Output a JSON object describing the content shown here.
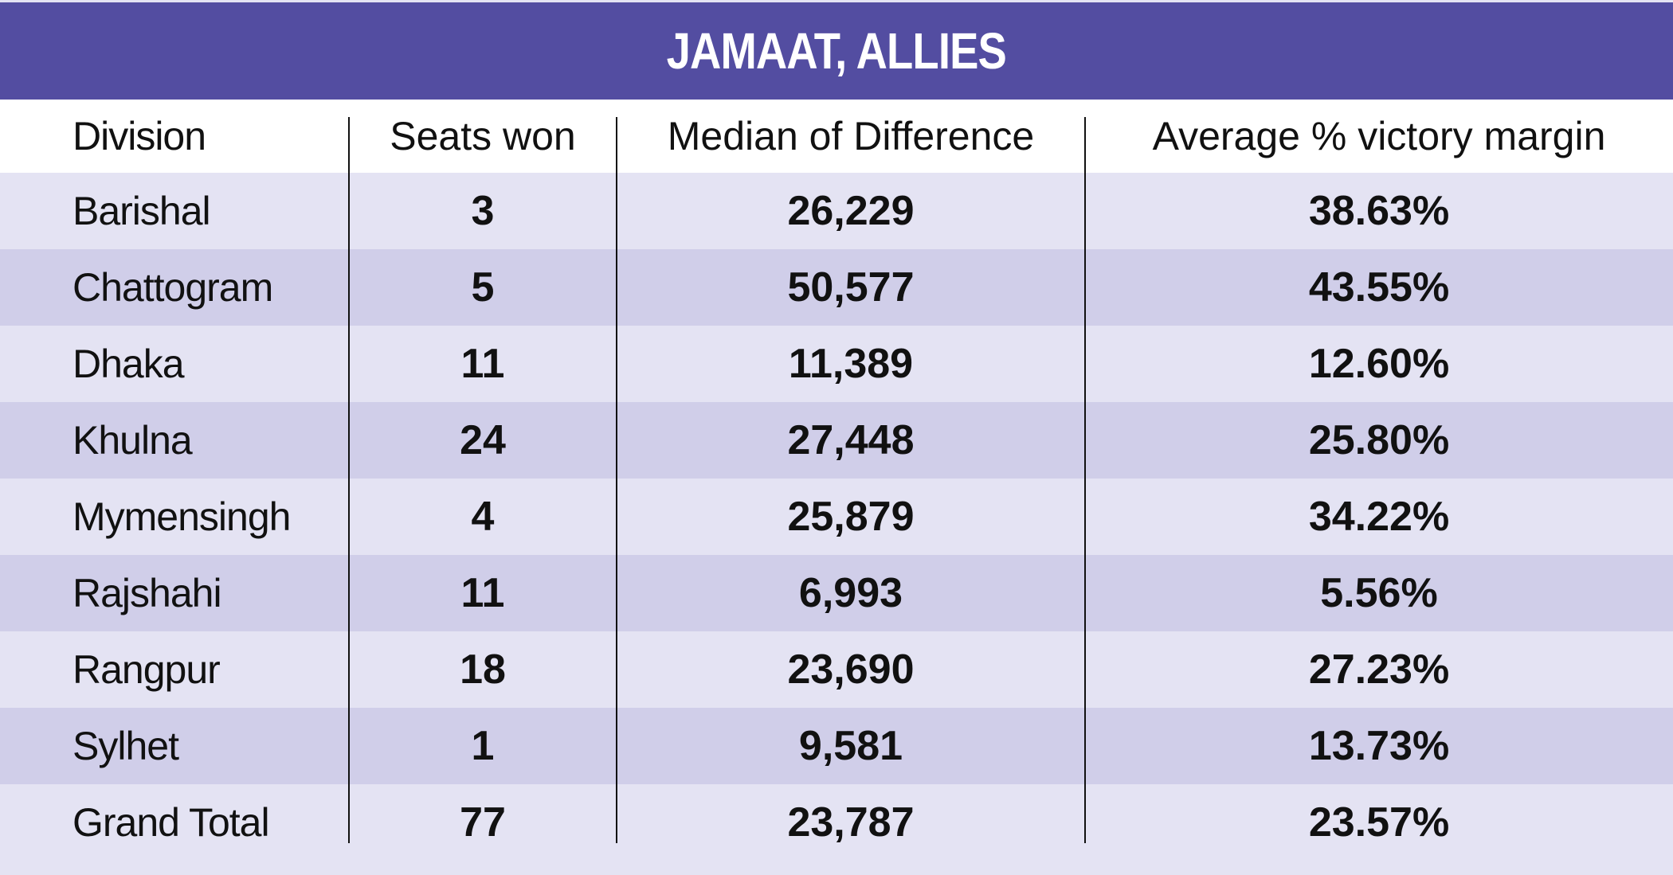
{
  "title": "JAMAAT, ALLIES",
  "columns": [
    "Division",
    "Seats won",
    "Median of Difference",
    "Average % victory margin"
  ],
  "rows": [
    {
      "division": "Barishal",
      "seats": "3",
      "median": "26,229",
      "avg": "38.63%"
    },
    {
      "division": "Chattogram",
      "seats": "5",
      "median": "50,577",
      "avg": "43.55%"
    },
    {
      "division": "Dhaka",
      "seats": "11",
      "median": "11,389",
      "avg": "12.60%"
    },
    {
      "division": "Khulna",
      "seats": "24",
      "median": "27,448",
      "avg": "25.80%"
    },
    {
      "division": "Mymensingh",
      "seats": "4",
      "median": "25,879",
      "avg": "34.22%"
    },
    {
      "division": "Rajshahi",
      "seats": "11",
      "median": "6,993",
      "avg": "5.56%"
    },
    {
      "division": "Rangpur",
      "seats": "18",
      "median": "23,690",
      "avg": "27.23%"
    },
    {
      "division": "Sylhet",
      "seats": "1",
      "median": "9,581",
      "avg": "13.73%"
    },
    {
      "division": "Grand Total",
      "seats": "77",
      "median": "23,787",
      "avg": "23.57%"
    }
  ],
  "colors": {
    "header": "#534da1",
    "row_light": "#e4e3f3",
    "row_dark": "#d0cee9"
  }
}
